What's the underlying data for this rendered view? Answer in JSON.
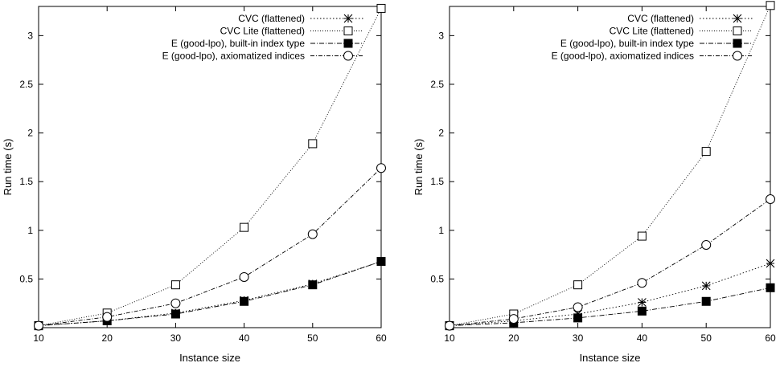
{
  "chart_data": [
    {
      "type": "line",
      "xlabel": "Instance size",
      "ylabel": "Run time (s)",
      "xlim": [
        10,
        60
      ],
      "ylim": [
        0,
        3.3
      ],
      "xticks": [
        "10",
        "20",
        "30",
        "40",
        "50",
        "60"
      ],
      "yticks": [
        "0.5",
        "1",
        "1.5",
        "2",
        "2.5",
        "3"
      ],
      "grid": false,
      "legend_position": "top-right",
      "x": [
        10,
        20,
        30,
        40,
        50,
        60
      ],
      "series": [
        {
          "name": "CVC (flattened)",
          "marker": "star",
          "dash": "1.5,2.5",
          "values": [
            0.02,
            0.07,
            0.15,
            0.28,
            0.45,
            0.68
          ]
        },
        {
          "name": "CVC Lite (flattened)",
          "marker": "square-open",
          "dash": "1,2",
          "values": [
            0.02,
            0.15,
            0.44,
            1.03,
            1.89,
            3.28
          ]
        },
        {
          "name": "E (good-lpo), built-in index type",
          "marker": "square-filled",
          "dash": "6,2,1,2",
          "values": [
            0.02,
            0.07,
            0.14,
            0.27,
            0.44,
            0.68
          ]
        },
        {
          "name": "E (good-lpo), axiomatized indices",
          "marker": "circle-open",
          "dash": "5,2,1,2",
          "values": [
            0.02,
            0.11,
            0.25,
            0.52,
            0.96,
            1.64
          ]
        }
      ]
    },
    {
      "type": "line",
      "xlabel": "Instance size",
      "ylabel": "Run time (s)",
      "xlim": [
        10,
        60
      ],
      "ylim": [
        0,
        3.3
      ],
      "xticks": [
        "10",
        "20",
        "30",
        "40",
        "50",
        "60"
      ],
      "yticks": [
        "0.5",
        "1",
        "1.5",
        "2",
        "2.5",
        "3"
      ],
      "grid": false,
      "legend_position": "top-right",
      "x": [
        10,
        20,
        30,
        40,
        50,
        60
      ],
      "series": [
        {
          "name": "CVC (flattened)",
          "marker": "star",
          "dash": "1.5,2.5",
          "values": [
            0.02,
            0.07,
            0.14,
            0.26,
            0.43,
            0.66
          ]
        },
        {
          "name": "CVC Lite (flattened)",
          "marker": "square-open",
          "dash": "1,2",
          "values": [
            0.02,
            0.14,
            0.44,
            0.94,
            1.81,
            3.31
          ]
        },
        {
          "name": "E (good-lpo), built-in index type",
          "marker": "square-filled",
          "dash": "6,2,1,2",
          "values": [
            0.02,
            0.05,
            0.1,
            0.17,
            0.27,
            0.41
          ]
        },
        {
          "name": "E (good-lpo), axiomatized indices",
          "marker": "circle-open",
          "dash": "5,2,1,2",
          "values": [
            0.02,
            0.09,
            0.21,
            0.46,
            0.85,
            1.32
          ]
        }
      ]
    }
  ]
}
